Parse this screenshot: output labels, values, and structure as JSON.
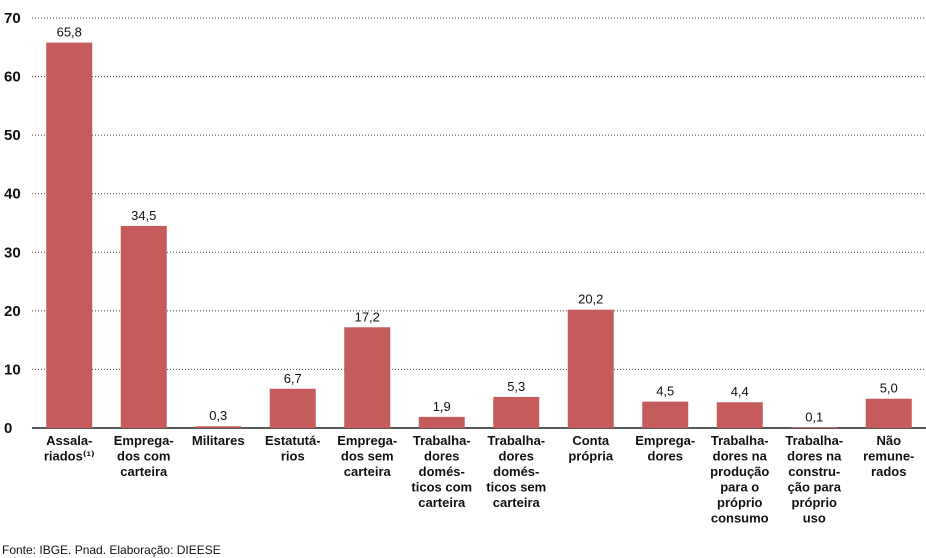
{
  "chart_data": {
    "type": "bar",
    "categories": [
      "Assala-\nriados⁽¹⁾",
      "Emprega-\ndos com\ncarteira",
      "Militares",
      "Estatutá-\nrios",
      "Emprega-\ndos sem\ncarteira",
      "Trabalha-\ndores\ndomés-\nticos com\ncarteira",
      "Trabalha-\ndores\ndomés-\nticos sem\ncarteira",
      "Conta\nprópria",
      "Emprega-\ndores",
      "Trabalha-\ndores na\nprodução\npara o\npróprio\nconsumo",
      "Trabalha-\ndores na\nconstru-\nção para\npróprio\nuso",
      "Não\nremune-\nrados"
    ],
    "values": [
      65.8,
      34.5,
      0.3,
      6.7,
      17.2,
      1.9,
      5.3,
      20.2,
      4.5,
      4.4,
      0.1,
      5.0
    ],
    "value_labels": [
      "65,8",
      "34,5",
      "0,3",
      "6,7",
      "17,2",
      "1,9",
      "5,3",
      "20,2",
      "4,5",
      "4,4",
      "0,1",
      "5,0"
    ],
    "color": "#c65b5b",
    "ylim": [
      0,
      70
    ],
    "yticks": [
      0,
      10,
      20,
      30,
      40,
      50,
      60,
      70
    ],
    "grid": true,
    "source": "Fonte: IBGE. Pnad. Elaboração: DIEESE"
  }
}
